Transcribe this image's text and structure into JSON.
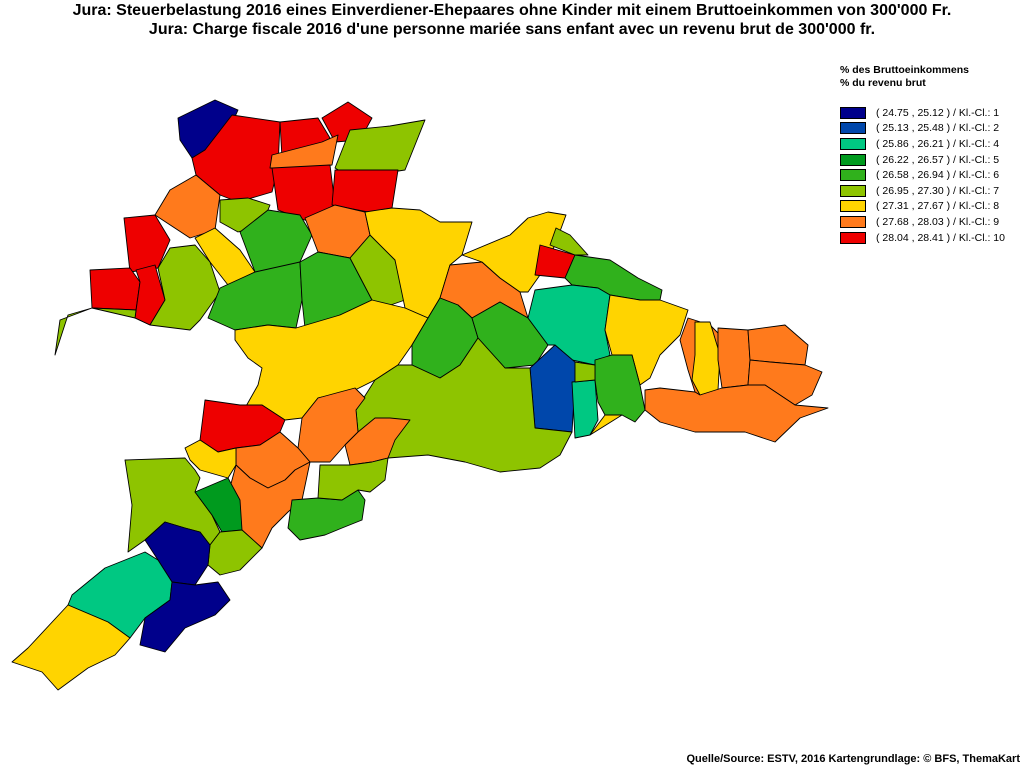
{
  "title_de": "Jura: Steuerbelastung 2016 eines Einverdiener-Ehepaares ohne Kinder mit einem Bruttoeinkommen von 300'000 Fr.",
  "title_fr": "Jura: Charge fiscale 2016 d'une personne mariée sans enfant avec un revenu brut de 300'000 fr.",
  "legend": {
    "heading_de": "% des Bruttoeinkommens",
    "heading_fr": "% du revenu brut",
    "classes": [
      {
        "label": "( 24.75 , 25.12 ) / Kl.-Cl.: 1",
        "color": "#00008b"
      },
      {
        "label": "( 25.13 , 25.48 ) / Kl.-Cl.: 2",
        "color": "#0047ab"
      },
      {
        "label": "( 25.86 , 26.21 ) / Kl.-Cl.: 4",
        "color": "#00c882"
      },
      {
        "label": "( 26.22 , 26.57 ) / Kl.-Cl.: 5",
        "color": "#009a1e"
      },
      {
        "label": "( 26.58 , 26.94 ) / Kl.-Cl.: 6",
        "color": "#30b11c"
      },
      {
        "label": "( 26.95 , 27.30 ) / Kl.-Cl.: 7",
        "color": "#8ec400"
      },
      {
        "label": "( 27.31 , 27.67 ) / Kl.-Cl.: 8",
        "color": "#ffd400"
      },
      {
        "label": "( 27.68 , 28.03 ) / Kl.-Cl.: 9",
        "color": "#ff7a1c"
      },
      {
        "label": "( 28.04 , 28.41 ) / Kl.-Cl.: 10",
        "color": "#ee0000"
      }
    ]
  },
  "source": "Quelle/Source: ESTV, 2016 Kartengrundlage: © BFS, ThemaKart"
}
